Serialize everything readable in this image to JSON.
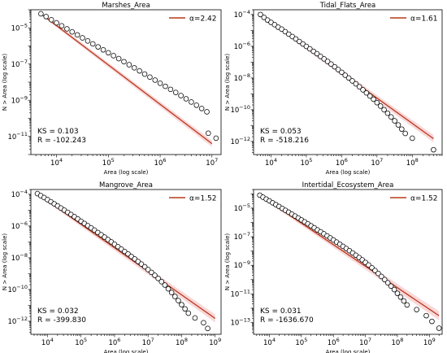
{
  "chart_data": [
    {
      "type": "scatter",
      "title": "Marshes_Area",
      "xlabel": "Area (log scale)",
      "ylabel": "N > Area (log scale)",
      "x_scale": "log",
      "y_scale": "log",
      "xlim": [
        3200,
        15000000
      ],
      "ylim": [
        1e-12,
        0.0001
      ],
      "x_ticks": [
        10000,
        100000,
        1000000,
        10000000
      ],
      "x_tick_labels": [
        "10^4",
        "10^5",
        "10^6",
        "10^7"
      ],
      "y_ticks": [
        1e-11,
        1e-09,
        1e-07,
        1e-05
      ],
      "y_tick_labels": [
        "10^-11",
        "10^-9",
        "10^-7",
        "10^-5"
      ],
      "legend": {
        "label": "α=2.42",
        "position": "top-right"
      },
      "annotations": [
        "KS = 0.103",
        "R = -102.243"
      ],
      "fit_line": {
        "x": [
          5000,
          10000000
        ],
        "y": [
          6e-05,
          4e-12
        ]
      },
      "series": [
        {
          "values": [
            [
              5000,
              6e-05
            ],
            [
              6300,
              4.2e-05
            ],
            [
              7950,
              2.8e-05
            ],
            [
              10000,
              1.9e-05
            ],
            [
              12600,
              1.3e-05
            ],
            [
              15900,
              8.8e-06
            ],
            [
              20000,
              6e-06
            ],
            [
              25200,
              4.1e-06
            ],
            [
              31700,
              2.8e-06
            ],
            [
              40000,
              1.9e-06
            ],
            [
              50300,
              1.3e-06
            ],
            [
              63400,
              8.9e-07
            ],
            [
              79800,
              6.1e-07
            ],
            [
              100000,
              4.2e-07
            ],
            [
              126000,
              2.9e-07
            ],
            [
              159000,
              2e-07
            ],
            [
              200000,
              1.35e-07
            ],
            [
              252000,
              9.2e-08
            ],
            [
              317000,
              6.2e-08
            ],
            [
              400000,
              4.2e-08
            ],
            [
              503000,
              2.8e-08
            ],
            [
              634000,
              1.9e-08
            ],
            [
              798000,
              1.3e-08
            ],
            [
              1000000,
              8.7e-09
            ],
            [
              1260000,
              5.9e-09
            ],
            [
              1590000,
              4e-09
            ],
            [
              2000000,
              2.7e-09
            ],
            [
              2520000,
              1.8e-09
            ],
            [
              3170000,
              1.2e-09
            ],
            [
              4000000,
              8e-10
            ],
            [
              5030000,
              5.3e-10
            ],
            [
              6340000,
              3.5e-10
            ],
            [
              7980000,
              2.3e-10
            ],
            [
              8500000,
              1.5e-11
            ],
            [
              12000000,
              8e-12
            ]
          ]
        }
      ]
    },
    {
      "type": "scatter",
      "title": "Tidal_Flats_Area",
      "xlabel": "Area (log scale)",
      "ylabel": "N > Area (log scale)",
      "x_scale": "log",
      "y_scale": "log",
      "xlim": [
        3200,
        700000000
      ],
      "ylim": [
        1.5e-13,
        0.0002
      ],
      "x_ticks": [
        10000,
        100000,
        1000000,
        10000000,
        100000000
      ],
      "x_tick_labels": [
        "10^4",
        "10^5",
        "10^6",
        "10^7",
        "10^8"
      ],
      "y_ticks": [
        1e-12,
        1e-10,
        1e-08,
        1e-06,
        0.0001
      ],
      "y_tick_labels": [
        "10^-12",
        "10^-10",
        "10^-8",
        "10^-6",
        "10^-4"
      ],
      "legend": {
        "label": "α=1.61",
        "position": "top-right"
      },
      "annotations": [
        "KS = 0.053",
        "R = -518.216"
      ],
      "fit_line": {
        "x": [
          5000,
          400000000
        ],
        "y": [
          0.0001,
          1.5e-12
        ]
      },
      "series": [
        {
          "values": [
            [
              5000,
              0.0001
            ],
            [
              6300,
              6.6e-05
            ],
            [
              7950,
              4.5e-05
            ],
            [
              10000,
              3.2e-05
            ],
            [
              12600,
              2.3e-05
            ],
            [
              15900,
              1.6e-05
            ],
            [
              20000,
              1.2e-05
            ],
            [
              25200,
              8.3e-06
            ],
            [
              31700,
              5.8e-06
            ],
            [
              40000,
              4.1e-06
            ],
            [
              50300,
              2.9e-06
            ],
            [
              63400,
              2e-06
            ],
            [
              79800,
              1.4e-06
            ],
            [
              100000,
              9.8e-07
            ],
            [
              126000,
              6.9e-07
            ],
            [
              159000,
              4.8e-07
            ],
            [
              200000,
              3.4e-07
            ],
            [
              252000,
              2.3e-07
            ],
            [
              317000,
              1.6e-07
            ],
            [
              400000,
              1.1e-07
            ],
            [
              503000,
              7.5e-08
            ],
            [
              634000,
              5.1e-08
            ],
            [
              798000,
              3.4e-08
            ],
            [
              1000000,
              2.3e-08
            ],
            [
              1260000,
              1.5e-08
            ],
            [
              1590000,
              1e-08
            ],
            [
              2000000,
              6.6e-09
            ],
            [
              2520000,
              4.3e-09
            ],
            [
              3170000,
              2.8e-09
            ],
            [
              4000000,
              1.8e-09
            ],
            [
              5030000,
              1.15e-09
            ],
            [
              6340000,
              7.3e-10
            ],
            [
              7980000,
              4.6e-10
            ],
            [
              10000000,
              2.8e-10
            ],
            [
              12600000,
              1.7e-10
            ],
            [
              15900000,
              1e-10
            ],
            [
              20000000,
              6e-11
            ],
            [
              25200000,
              3.5e-11
            ],
            [
              31700000,
              2e-11
            ],
            [
              40000000,
              1.1e-11
            ],
            [
              50300000,
              6e-12
            ],
            [
              63400000,
              3.2e-12
            ],
            [
              100000000,
              1.6e-12
            ],
            [
              400000000,
              3e-13
            ]
          ]
        }
      ]
    },
    {
      "type": "scatter",
      "title": "Mangrove_Area",
      "xlabel": "Area (log scale)",
      "ylabel": "N > Area (log scale)",
      "x_scale": "log",
      "y_scale": "log",
      "xlim": [
        3200,
        1500000000
      ],
      "ylim": [
        1.5e-13,
        0.0002
      ],
      "x_ticks": [
        10000,
        100000,
        1000000,
        10000000,
        100000000,
        1000000000
      ],
      "x_tick_labels": [
        "10^4",
        "10^5",
        "10^6",
        "10^7",
        "10^8",
        "10^9"
      ],
      "y_ticks": [
        1e-12,
        1e-10,
        1e-08,
        1e-06,
        0.0001
      ],
      "y_tick_labels": [
        "10^-12",
        "10^-10",
        "10^-8",
        "10^-6",
        "10^-4"
      ],
      "legend": {
        "label": "α=1.52",
        "position": "top-right"
      },
      "annotations": [
        "KS = 0.032",
        "R = -399.830"
      ],
      "fit_line": {
        "x": [
          5000,
          1000000000
        ],
        "y": [
          0.00011,
          1.5e-12
        ]
      },
      "series": [
        {
          "values": [
            [
              5000,
              0.00011
            ],
            [
              6300,
              8.2e-05
            ],
            [
              7950,
              6.2e-05
            ],
            [
              10000,
              4.6e-05
            ],
            [
              12600,
              3.4e-05
            ],
            [
              15900,
              2.5e-05
            ],
            [
              20000,
              1.85e-05
            ],
            [
              25200,
              1.35e-05
            ],
            [
              31700,
              1e-05
            ],
            [
              40000,
              7.3e-06
            ],
            [
              50300,
              5.3e-06
            ],
            [
              63400,
              3.9e-06
            ],
            [
              79800,
              2.8e-06
            ],
            [
              100000,
              2e-06
            ],
            [
              126000,
              1.45e-06
            ],
            [
              159000,
              1.05e-06
            ],
            [
              200000,
              7.6e-07
            ],
            [
              252000,
              5.5e-07
            ],
            [
              317000,
              3.9e-07
            ],
            [
              400000,
              2.8e-07
            ],
            [
              503000,
              2e-07
            ],
            [
              634000,
              1.4e-07
            ],
            [
              798000,
              1e-07
            ],
            [
              1000000,
              7.1e-08
            ],
            [
              1260000,
              5e-08
            ],
            [
              1590000,
              3.5e-08
            ],
            [
              2000000,
              2.5e-08
            ],
            [
              2520000,
              1.75e-08
            ],
            [
              3170000,
              1.2e-08
            ],
            [
              4000000,
              8.4e-09
            ],
            [
              5030000,
              5.8e-09
            ],
            [
              6340000,
              4e-09
            ],
            [
              7980000,
              2.7e-09
            ],
            [
              10000000,
              1.8e-09
            ],
            [
              12600000,
              1.2e-09
            ],
            [
              15900000,
              7.8e-10
            ],
            [
              20000000,
              5e-10
            ],
            [
              25200000,
              3.1e-10
            ],
            [
              31700000,
              1.9e-10
            ],
            [
              40000000,
              1.1e-10
            ],
            [
              50300000,
              6.4e-11
            ],
            [
              63400000,
              3.6e-11
            ],
            [
              79800000,
              2e-11
            ],
            [
              100000000,
              1.1e-11
            ],
            [
              126000000,
              6e-12
            ],
            [
              159000000,
              3.2e-12
            ],
            [
              250000000,
              1.6e-12
            ],
            [
              450000000,
              8e-13
            ],
            [
              600000000,
              3.5e-13
            ]
          ]
        }
      ]
    },
    {
      "type": "scatter",
      "title": "Intertidal_Ecosystem_Area",
      "xlabel": "Area (log scale)",
      "ylabel": "N > Area (log scale)",
      "x_scale": "log",
      "y_scale": "log",
      "xlim": [
        3200,
        2500000000
      ],
      "ylim": [
        1.5e-14,
        0.0002
      ],
      "x_ticks": [
        10000,
        100000,
        1000000,
        10000000,
        100000000,
        1000000000
      ],
      "x_tick_labels": [
        "10^4",
        "10^5",
        "10^6",
        "10^7",
        "10^8",
        "10^9"
      ],
      "y_ticks": [
        1e-13,
        1e-11,
        1e-09,
        1e-07,
        1e-05
      ],
      "y_tick_labels": [
        "10^-13",
        "10^-11",
        "10^-9",
        "10^-7",
        "10^-5"
      ],
      "legend": {
        "label": "α=1.52",
        "position": "top-right"
      },
      "annotations": [
        "KS = 0.031",
        "R = -1636.670"
      ],
      "fit_line": {
        "x": [
          5000,
          2000000000
        ],
        "y": [
          8e-05,
          3e-13
        ]
      },
      "series": [
        {
          "values": [
            [
              5000,
              8e-05
            ],
            [
              6300,
              5.8e-05
            ],
            [
              7950,
              4.3e-05
            ],
            [
              10000,
              3.2e-05
            ],
            [
              12600,
              2.35e-05
            ],
            [
              15900,
              1.75e-05
            ],
            [
              20000,
              1.3e-05
            ],
            [
              25200,
              9.5e-06
            ],
            [
              31700,
              7e-06
            ],
            [
              40000,
              5.2e-06
            ],
            [
              50300,
              3.8e-06
            ],
            [
              63400,
              2.8e-06
            ],
            [
              79800,
              2.05e-06
            ],
            [
              100000,
              1.5e-06
            ],
            [
              126000,
              1.1e-06
            ],
            [
              159000,
              8e-07
            ],
            [
              200000,
              5.8e-07
            ],
            [
              252000,
              4.2e-07
            ],
            [
              317000,
              3e-07
            ],
            [
              400000,
              2.2e-07
            ],
            [
              503000,
              1.6e-07
            ],
            [
              634000,
              1.15e-07
            ],
            [
              798000,
              8.2e-08
            ],
            [
              1000000,
              5.9e-08
            ],
            [
              1260000,
              4.2e-08
            ],
            [
              1590000,
              3e-08
            ],
            [
              2000000,
              2.1e-08
            ],
            [
              2520000,
              1.5e-08
            ],
            [
              3170000,
              1.05e-08
            ],
            [
              4000000,
              7.3e-09
            ],
            [
              5030000,
              5.1e-09
            ],
            [
              6340000,
              3.5e-09
            ],
            [
              7980000,
              2.4e-09
            ],
            [
              10000000,
              1.6e-09
            ],
            [
              12600000,
              1.05e-09
            ],
            [
              15900000,
              6.8e-10
            ],
            [
              20000000,
              4.3e-10
            ],
            [
              25200000,
              2.7e-10
            ],
            [
              31700000,
              1.65e-10
            ],
            [
              40000000,
              1e-10
            ],
            [
              50300000,
              6e-11
            ],
            [
              63400000,
              3.5e-11
            ],
            [
              79800000,
              2e-11
            ],
            [
              100000000,
              1.1e-11
            ],
            [
              126000000,
              6e-12
            ],
            [
              159000000,
              3.2e-12
            ],
            [
              200000000,
              1.7e-12
            ],
            [
              400000000,
              8e-13
            ],
            [
              800000000,
              3e-13
            ],
            [
              1200000000,
              1.2e-13
            ],
            [
              2000000000,
              4e-14
            ]
          ]
        }
      ]
    }
  ],
  "colors": {
    "fit_line": "#b8391a",
    "confidence_band": "#f4b6ba",
    "marker_edge": "#000000",
    "marker_fill": "#ffffff",
    "axes": "#000000"
  }
}
